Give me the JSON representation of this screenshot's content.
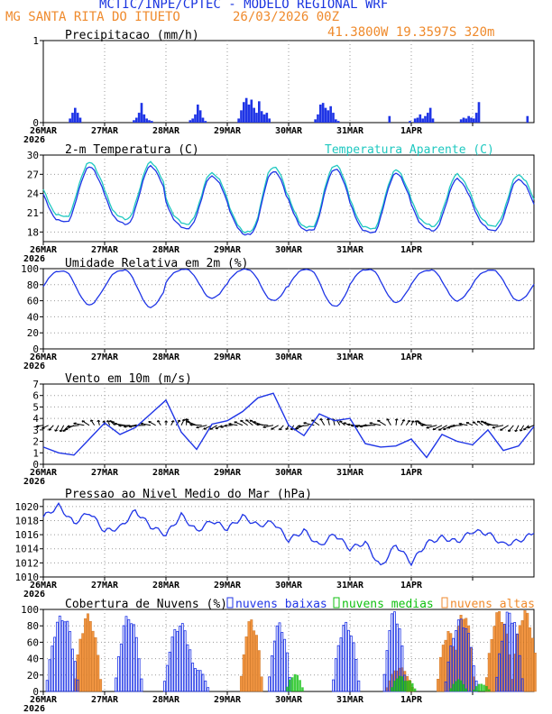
{
  "header": {
    "title": "MCTIC/INPE/CPTEC - MODELO REGIONAL WRF",
    "location": "MG SANTA RITA DO ITUETO",
    "run": "26/03/2026 00Z",
    "coords": "41.3800W 19.3597S 320m"
  },
  "colors": {
    "title": "#1a35e0",
    "subtitle": "#ef8a2c",
    "series_blue": "#1f35e6",
    "series_cyan": "#1fc8c0",
    "low_clouds": "#1f35e6",
    "mid_clouds": "#10c010",
    "high_clouds": "#ef8a2c"
  },
  "x_axis": {
    "ticks": [
      "26MAR",
      "27MAR",
      "28MAR",
      "29MAR",
      "30MAR",
      "31MAR",
      "1APR"
    ],
    "year_label": "2026"
  },
  "chart_data": [
    {
      "type": "bar",
      "title": "Precipitacao (mm/h)",
      "ylim": [
        0,
        1
      ],
      "yticks": [
        "0",
        "1"
      ],
      "series": [
        {
          "name": "precip",
          "hours": [
            10,
            11,
            12,
            13,
            14,
            35,
            36,
            37,
            38,
            39,
            40,
            41,
            42,
            57,
            58,
            59,
            60,
            61,
            62,
            63,
            76,
            77,
            78,
            79,
            80,
            81,
            82,
            83,
            84,
            85,
            86,
            87,
            88,
            106,
            107,
            108,
            109,
            110,
            111,
            112,
            113,
            114,
            115,
            135,
            143,
            145,
            146,
            147,
            148,
            149,
            150,
            151,
            152,
            163,
            164,
            165,
            166,
            167,
            168,
            169,
            170,
            189
          ],
          "values": [
            0.05,
            0.12,
            0.18,
            0.12,
            0.06,
            0.03,
            0.06,
            0.12,
            0.24,
            0.1,
            0.05,
            0.03,
            0.02,
            0.03,
            0.05,
            0.1,
            0.22,
            0.15,
            0.06,
            0.02,
            0.05,
            0.15,
            0.25,
            0.3,
            0.22,
            0.28,
            0.18,
            0.12,
            0.26,
            0.14,
            0.1,
            0.12,
            0.05,
            0.04,
            0.1,
            0.22,
            0.24,
            0.18,
            0.15,
            0.2,
            0.12,
            0.04,
            0.02,
            0.08,
            0.02,
            0.05,
            0.06,
            0.1,
            0.05,
            0.08,
            0.12,
            0.18,
            0.05,
            0.04,
            0.06,
            0.05,
            0.08,
            0.06,
            0.05,
            0.12,
            0.25,
            0.08
          ]
        }
      ]
    },
    {
      "type": "line",
      "title": "2-m Temperatura (C)",
      "legend": "Temperatura Aparente (C)",
      "ylim": [
        16.5,
        30
      ],
      "yticks": [
        "18",
        "21",
        "24",
        "27",
        "30"
      ],
      "series": [
        {
          "name": "Temperatura (C)",
          "min": [
            19.6,
            19.3,
            18.6,
            17.6,
            18.2,
            17.9,
            18.3
          ],
          "max": [
            28.1,
            28.2,
            26.7,
            27.5,
            27.8,
            27.1,
            26.2
          ]
        },
        {
          "name": "Temperatura Aparente (C)",
          "min": [
            20.4,
            20.1,
            19.3,
            18.0,
            18.7,
            18.5,
            19.0
          ],
          "max": [
            28.8,
            28.8,
            27.2,
            28.2,
            28.4,
            27.6,
            26.9
          ]
        }
      ]
    },
    {
      "type": "line",
      "title": "Umidade Relativa em 2m (%)",
      "ylim": [
        0,
        100
      ],
      "yticks": [
        "0",
        "20",
        "40",
        "60",
        "80",
        "100"
      ],
      "series": [
        {
          "name": "Umidade Relativa (%)",
          "min": [
            55,
            52,
            63,
            60,
            53,
            58,
            60
          ],
          "max": [
            97,
            98,
            99,
            99,
            99,
            99,
            98
          ]
        }
      ]
    },
    {
      "type": "line",
      "title": "Vento em 10m (m/s)",
      "ylim": [
        0,
        7
      ],
      "yticks": [
        "0",
        "1",
        "2",
        "3",
        "4",
        "5",
        "6",
        "7"
      ],
      "series": [
        {
          "name": "Vento (m/s)",
          "x_hours": [
            0,
            6,
            12,
            18,
            24,
            30,
            36,
            42,
            48,
            54,
            60,
            66,
            72,
            78,
            84,
            90,
            96,
            102,
            108,
            114,
            120,
            126,
            132,
            138,
            144,
            150,
            156,
            162,
            168,
            174,
            180,
            186,
            192
          ],
          "values": [
            1.5,
            1.0,
            0.8,
            2.2,
            3.6,
            2.6,
            3.2,
            4.4,
            5.6,
            2.8,
            1.3,
            3.5,
            3.8,
            4.6,
            5.8,
            6.2,
            3.4,
            2.5,
            4.4,
            3.8,
            4.0,
            1.8,
            1.5,
            1.6,
            2.2,
            0.6,
            2.6,
            2.0,
            1.7,
            3.0,
            1.2,
            1.6,
            3.3
          ]
        }
      ]
    },
    {
      "type": "line",
      "title": "Pressao ao Nivel Medio do Mar (hPa)",
      "ylim": [
        1010,
        1021
      ],
      "yticks": [
        "1010",
        "1012",
        "1014",
        "1016",
        "1018",
        "1020"
      ],
      "series": [
        {
          "name": "Pressao (hPa)",
          "x_hours": [
            0,
            6,
            12,
            18,
            24,
            30,
            36,
            42,
            48,
            54,
            60,
            66,
            72,
            78,
            84,
            90,
            96,
            102,
            108,
            114,
            120,
            126,
            132,
            138,
            144,
            150,
            156,
            162,
            168,
            174,
            180,
            186,
            192
          ],
          "values": [
            1018.5,
            1020.1,
            1017.6,
            1019.2,
            1016.5,
            1017.0,
            1019.4,
            1017.2,
            1016.0,
            1018.8,
            1016.5,
            1018.0,
            1016.8,
            1018.6,
            1017.3,
            1017.8,
            1015.2,
            1016.6,
            1014.4,
            1016.1,
            1014.0,
            1014.9,
            1011.4,
            1014.6,
            1012.0,
            1014.8,
            1015.6,
            1015.0,
            1016.5,
            1016.2,
            1014.6,
            1015.1,
            1016.2
          ]
        }
      ]
    },
    {
      "type": "bar",
      "title": "Cobertura de Nuvens (%)",
      "ylim": [
        0,
        100
      ],
      "yticks": [
        "0",
        "20",
        "40",
        "60",
        "80",
        "100"
      ],
      "legend": [
        "nuvens baixas",
        "nuvens medias",
        "nuvens altas"
      ],
      "series": [
        {
          "name": "nuvens baixas",
          "centers": [
            7,
            33,
            53,
            59,
            92,
            118,
            137,
            163,
            182
          ],
          "peaks": [
            95,
            95,
            85,
            30,
            85,
            85,
            100,
            90,
            100
          ],
          "widths": [
            5,
            4,
            5,
            4,
            3,
            4,
            3,
            5,
            4
          ]
        },
        {
          "name": "nuvens medias",
          "centers": [
            98,
            139,
            142,
            162,
            171
          ],
          "peaks": [
            22,
            20,
            15,
            15,
            10
          ],
          "widths": [
            2,
            2,
            2,
            2,
            2
          ]
        },
        {
          "name": "nuvens altas",
          "centers": [
            17,
            81,
            139,
            158,
            164,
            178,
            188
          ],
          "peaks": [
            95,
            90,
            30,
            75,
            100,
            100,
            100
          ],
          "widths": [
            4,
            3,
            4,
            3,
            3,
            4,
            4
          ]
        }
      ]
    }
  ]
}
